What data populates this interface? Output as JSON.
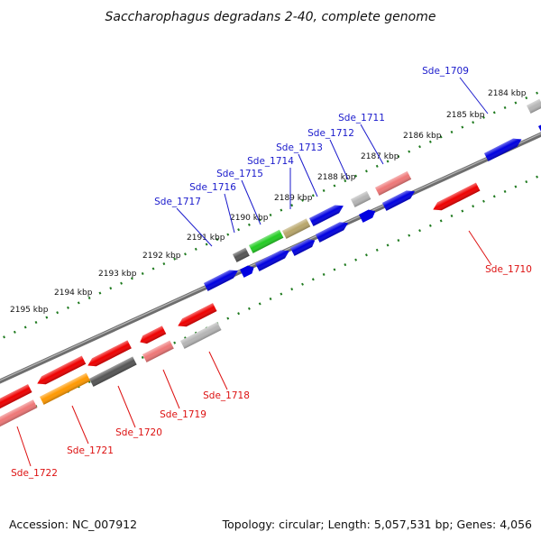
{
  "title": "Saccharophagus degradans 2-40, complete genome",
  "footer": {
    "accession": "Accession: NC_007912",
    "summary": "Topology: circular; Length: 5,057,531 bp; Genes: 4,056"
  },
  "colors": {
    "forward_label": "#1a1acc",
    "reverse_label": "#dd1111",
    "backbone": "#808080",
    "ruler_ticks": "#1f7a1f"
  },
  "kbp_markers": [
    "2184 kbp",
    "2185 kbp",
    "2186 kbp",
    "2187 kbp",
    "2188 kbp",
    "2189 kbp",
    "2190 kbp",
    "2191 kbp",
    "2192 kbp",
    "2193 kbp",
    "2194 kbp",
    "2195 kbp"
  ],
  "forward_genes": [
    "Sde_1709",
    "Sde_1711",
    "Sde_1712",
    "Sde_1713",
    "Sde_1714",
    "Sde_1715",
    "Sde_1716",
    "Sde_1717"
  ],
  "reverse_genes": [
    "Sde_1710",
    "Sde_1718",
    "Sde_1719",
    "Sde_1720",
    "Sde_1721",
    "Sde_1722"
  ]
}
